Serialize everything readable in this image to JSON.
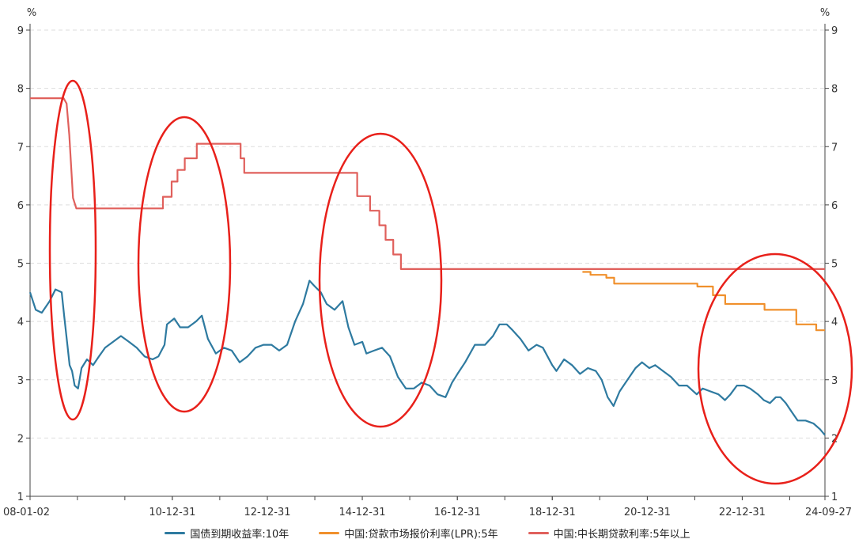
{
  "chart_data": {
    "type": "line",
    "y_unit_left": "%",
    "y_unit_right": "%",
    "ylim": [
      1,
      9
    ],
    "yticks": [
      1,
      2,
      3,
      4,
      5,
      6,
      7,
      8,
      9
    ],
    "x_range": [
      "2008-01-02",
      "2024-09-27"
    ],
    "x_tick_labels": [
      {
        "date": "2008-01-02",
        "label": "08-01-02"
      },
      {
        "date": "2010-12-31",
        "label": "10-12-31"
      },
      {
        "date": "2012-12-31",
        "label": "12-12-31"
      },
      {
        "date": "2014-12-31",
        "label": "14-12-31"
      },
      {
        "date": "2016-12-31",
        "label": "16-12-31"
      },
      {
        "date": "2018-12-31",
        "label": "18-12-31"
      },
      {
        "date": "2020-12-31",
        "label": "20-12-31"
      },
      {
        "date": "2022-12-31",
        "label": "22-12-31"
      },
      {
        "date": "2024-09-27",
        "label": "24-09-27"
      }
    ],
    "grid": true,
    "legend_position": "bottom",
    "series": [
      {
        "name": "国债到期收益率:10年",
        "color": "#2e7aa0",
        "points": [
          [
            "2008-01-02",
            4.5
          ],
          [
            "2008-02-15",
            4.2
          ],
          [
            "2008-04-01",
            4.15
          ],
          [
            "2008-06-01",
            4.35
          ],
          [
            "2008-07-15",
            4.55
          ],
          [
            "2008-09-01",
            4.5
          ],
          [
            "2008-09-20",
            4.1
          ],
          [
            "2008-10-15",
            3.6
          ],
          [
            "2008-11-01",
            3.25
          ],
          [
            "2008-11-20",
            3.15
          ],
          [
            "2008-12-10",
            2.9
          ],
          [
            "2009-01-05",
            2.85
          ],
          [
            "2009-02-01",
            3.2
          ],
          [
            "2009-03-15",
            3.35
          ],
          [
            "2009-05-01",
            3.25
          ],
          [
            "2009-06-15",
            3.4
          ],
          [
            "2009-08-01",
            3.55
          ],
          [
            "2009-10-01",
            3.65
          ],
          [
            "2009-12-01",
            3.75
          ],
          [
            "2010-02-01",
            3.65
          ],
          [
            "2010-04-01",
            3.55
          ],
          [
            "2010-06-01",
            3.4
          ],
          [
            "2010-08-01",
            3.35
          ],
          [
            "2010-09-15",
            3.4
          ],
          [
            "2010-11-01",
            3.6
          ],
          [
            "2010-11-20",
            3.95
          ],
          [
            "2011-01-15",
            4.05
          ],
          [
            "2011-03-01",
            3.9
          ],
          [
            "2011-05-01",
            3.9
          ],
          [
            "2011-07-01",
            4.0
          ],
          [
            "2011-08-15",
            4.1
          ],
          [
            "2011-10-01",
            3.7
          ],
          [
            "2011-12-01",
            3.45
          ],
          [
            "2012-02-01",
            3.55
          ],
          [
            "2012-04-01",
            3.5
          ],
          [
            "2012-06-01",
            3.3
          ],
          [
            "2012-08-01",
            3.4
          ],
          [
            "2012-10-01",
            3.55
          ],
          [
            "2012-12-01",
            3.6
          ],
          [
            "2013-02-01",
            3.6
          ],
          [
            "2013-04-01",
            3.5
          ],
          [
            "2013-06-01",
            3.6
          ],
          [
            "2013-08-01",
            4.0
          ],
          [
            "2013-10-01",
            4.3
          ],
          [
            "2013-11-20",
            4.7
          ],
          [
            "2014-01-01",
            4.6
          ],
          [
            "2014-02-15",
            4.5
          ],
          [
            "2014-04-01",
            4.3
          ],
          [
            "2014-06-01",
            4.2
          ],
          [
            "2014-08-01",
            4.35
          ],
          [
            "2014-09-15",
            3.9
          ],
          [
            "2014-11-01",
            3.6
          ],
          [
            "2014-12-31",
            3.65
          ],
          [
            "2015-02-01",
            3.45
          ],
          [
            "2015-04-01",
            3.5
          ],
          [
            "2015-06-01",
            3.55
          ],
          [
            "2015-08-01",
            3.4
          ],
          [
            "2015-10-01",
            3.05
          ],
          [
            "2015-12-01",
            2.85
          ],
          [
            "2016-02-01",
            2.85
          ],
          [
            "2016-04-01",
            2.95
          ],
          [
            "2016-06-01",
            2.9
          ],
          [
            "2016-08-01",
            2.75
          ],
          [
            "2016-10-01",
            2.7
          ],
          [
            "2016-11-20",
            2.95
          ],
          [
            "2017-01-01",
            3.1
          ],
          [
            "2017-03-01",
            3.3
          ],
          [
            "2017-05-15",
            3.6
          ],
          [
            "2017-08-01",
            3.6
          ],
          [
            "2017-10-01",
            3.75
          ],
          [
            "2017-11-20",
            3.95
          ],
          [
            "2018-01-15",
            3.95
          ],
          [
            "2018-03-01",
            3.85
          ],
          [
            "2018-05-01",
            3.7
          ],
          [
            "2018-07-01",
            3.5
          ],
          [
            "2018-09-01",
            3.6
          ],
          [
            "2018-10-20",
            3.55
          ],
          [
            "2018-12-31",
            3.25
          ],
          [
            "2019-02-01",
            3.15
          ],
          [
            "2019-04-01",
            3.35
          ],
          [
            "2019-06-01",
            3.25
          ],
          [
            "2019-08-01",
            3.1
          ],
          [
            "2019-10-01",
            3.2
          ],
          [
            "2019-12-01",
            3.15
          ],
          [
            "2020-01-15",
            3.0
          ],
          [
            "2020-03-01",
            2.7
          ],
          [
            "2020-04-15",
            2.55
          ],
          [
            "2020-06-01",
            2.8
          ],
          [
            "2020-08-01",
            3.0
          ],
          [
            "2020-10-01",
            3.2
          ],
          [
            "2020-11-20",
            3.3
          ],
          [
            "2021-01-15",
            3.2
          ],
          [
            "2021-03-01",
            3.25
          ],
          [
            "2021-05-01",
            3.15
          ],
          [
            "2021-07-01",
            3.05
          ],
          [
            "2021-09-01",
            2.9
          ],
          [
            "2021-11-01",
            2.9
          ],
          [
            "2022-01-15",
            2.75
          ],
          [
            "2022-03-01",
            2.85
          ],
          [
            "2022-05-01",
            2.8
          ],
          [
            "2022-07-01",
            2.75
          ],
          [
            "2022-08-20",
            2.65
          ],
          [
            "2022-10-01",
            2.75
          ],
          [
            "2022-11-20",
            2.9
          ],
          [
            "2023-01-15",
            2.9
          ],
          [
            "2023-03-01",
            2.85
          ],
          [
            "2023-05-01",
            2.75
          ],
          [
            "2023-06-15",
            2.65
          ],
          [
            "2023-08-01",
            2.6
          ],
          [
            "2023-09-15",
            2.7
          ],
          [
            "2023-10-20",
            2.7
          ],
          [
            "2023-12-01",
            2.6
          ],
          [
            "2024-01-15",
            2.45
          ],
          [
            "2024-03-01",
            2.3
          ],
          [
            "2024-05-01",
            2.3
          ],
          [
            "2024-07-01",
            2.25
          ],
          [
            "2024-08-20",
            2.15
          ],
          [
            "2024-09-27",
            2.05
          ]
        ]
      },
      {
        "name": "中国:贷款市场报价利率(LPR):5年",
        "color": "#f0902c",
        "points": [
          [
            "2019-08-20",
            4.85
          ],
          [
            "2019-10-21",
            4.85
          ],
          [
            "2019-10-21",
            4.8
          ],
          [
            "2020-02-20",
            4.8
          ],
          [
            "2020-02-20",
            4.75
          ],
          [
            "2020-04-20",
            4.75
          ],
          [
            "2020-04-20",
            4.65
          ],
          [
            "2022-01-20",
            4.65
          ],
          [
            "2022-01-20",
            4.6
          ],
          [
            "2022-05-20",
            4.6
          ],
          [
            "2022-05-20",
            4.45
          ],
          [
            "2022-08-22",
            4.45
          ],
          [
            "2022-08-22",
            4.3
          ],
          [
            "2023-06-20",
            4.3
          ],
          [
            "2023-06-20",
            4.2
          ],
          [
            "2024-02-20",
            4.2
          ],
          [
            "2024-02-20",
            3.95
          ],
          [
            "2024-07-22",
            3.95
          ],
          [
            "2024-07-22",
            3.85
          ],
          [
            "2024-09-27",
            3.85
          ]
        ]
      },
      {
        "name": "中国:中长期贷款利率:5年以上",
        "color": "#e0605c",
        "points": [
          [
            "2008-01-02",
            7.83
          ],
          [
            "2008-09-16",
            7.83
          ],
          [
            "2008-10-09",
            7.74
          ],
          [
            "2008-10-30",
            7.2
          ],
          [
            "2008-11-27",
            6.12
          ],
          [
            "2008-12-23",
            5.94
          ],
          [
            "2010-10-20",
            5.94
          ],
          [
            "2010-10-20",
            6.14
          ],
          [
            "2010-12-26",
            6.14
          ],
          [
            "2010-12-26",
            6.4
          ],
          [
            "2011-02-09",
            6.4
          ],
          [
            "2011-02-09",
            6.6
          ],
          [
            "2011-04-06",
            6.6
          ],
          [
            "2011-04-06",
            6.8
          ],
          [
            "2011-07-07",
            6.8
          ],
          [
            "2011-07-07",
            7.05
          ],
          [
            "2012-06-08",
            7.05
          ],
          [
            "2012-06-08",
            6.8
          ],
          [
            "2012-07-06",
            6.8
          ],
          [
            "2012-07-06",
            6.55
          ],
          [
            "2014-11-22",
            6.55
          ],
          [
            "2014-11-22",
            6.15
          ],
          [
            "2015-03-01",
            6.15
          ],
          [
            "2015-03-01",
            5.9
          ],
          [
            "2015-05-11",
            5.9
          ],
          [
            "2015-05-11",
            5.65
          ],
          [
            "2015-06-28",
            5.65
          ],
          [
            "2015-06-28",
            5.4
          ],
          [
            "2015-08-26",
            5.4
          ],
          [
            "2015-08-26",
            5.15
          ],
          [
            "2015-10-24",
            5.15
          ],
          [
            "2015-10-24",
            4.9
          ],
          [
            "2024-09-27",
            4.9
          ]
        ]
      }
    ]
  }
}
